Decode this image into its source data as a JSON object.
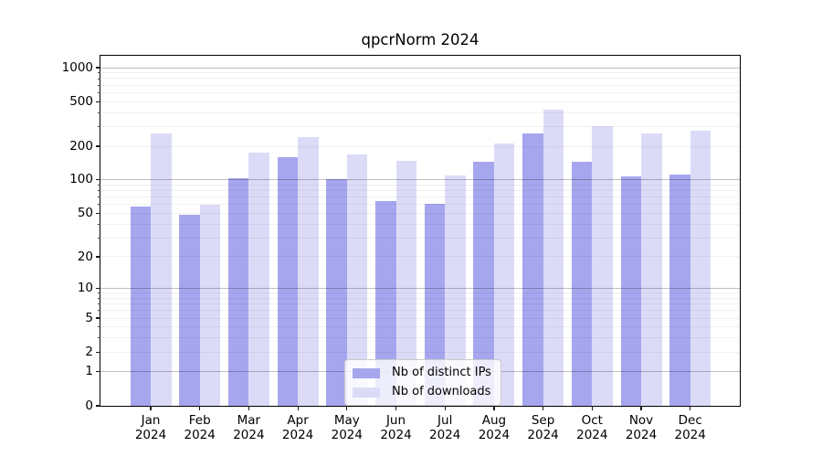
{
  "chart_data": {
    "type": "bar",
    "title": "qpcrNorm 2024",
    "categories": [
      {
        "month": "Jan",
        "year": "2024"
      },
      {
        "month": "Feb",
        "year": "2024"
      },
      {
        "month": "Mar",
        "year": "2024"
      },
      {
        "month": "Apr",
        "year": "2024"
      },
      {
        "month": "May",
        "year": "2024"
      },
      {
        "month": "Jun",
        "year": "2024"
      },
      {
        "month": "Jul",
        "year": "2024"
      },
      {
        "month": "Aug",
        "year": "2024"
      },
      {
        "month": "Sep",
        "year": "2024"
      },
      {
        "month": "Oct",
        "year": "2024"
      },
      {
        "month": "Nov",
        "year": "2024"
      },
      {
        "month": "Dec",
        "year": "2024"
      }
    ],
    "series": [
      {
        "name": "Nb of distinct IPs",
        "color": "#a6a6ef",
        "values": [
          58,
          49,
          104,
          161,
          101,
          65,
          61,
          145,
          260,
          145,
          108,
          112
        ]
      },
      {
        "name": "Nb of downloads",
        "color": "#dbdbf8",
        "values": [
          260,
          60,
          174,
          241,
          170,
          148,
          110,
          210,
          420,
          300,
          260,
          275
        ]
      }
    ],
    "yscale": "log1p",
    "ylim_top": 1276,
    "y_ticks": [
      0,
      1,
      2,
      5,
      10,
      20,
      50,
      100,
      200,
      500,
      1000
    ],
    "y_major_gridlines": [
      1,
      10,
      100,
      1000
    ],
    "y_minor_gridlines": [
      2,
      3,
      4,
      5,
      6,
      7,
      8,
      9,
      20,
      30,
      40,
      50,
      60,
      70,
      80,
      90,
      200,
      300,
      400,
      500,
      600,
      700,
      800,
      900
    ],
    "grid": true,
    "legend_position": "lower center",
    "xlabel": "",
    "ylabel": ""
  }
}
